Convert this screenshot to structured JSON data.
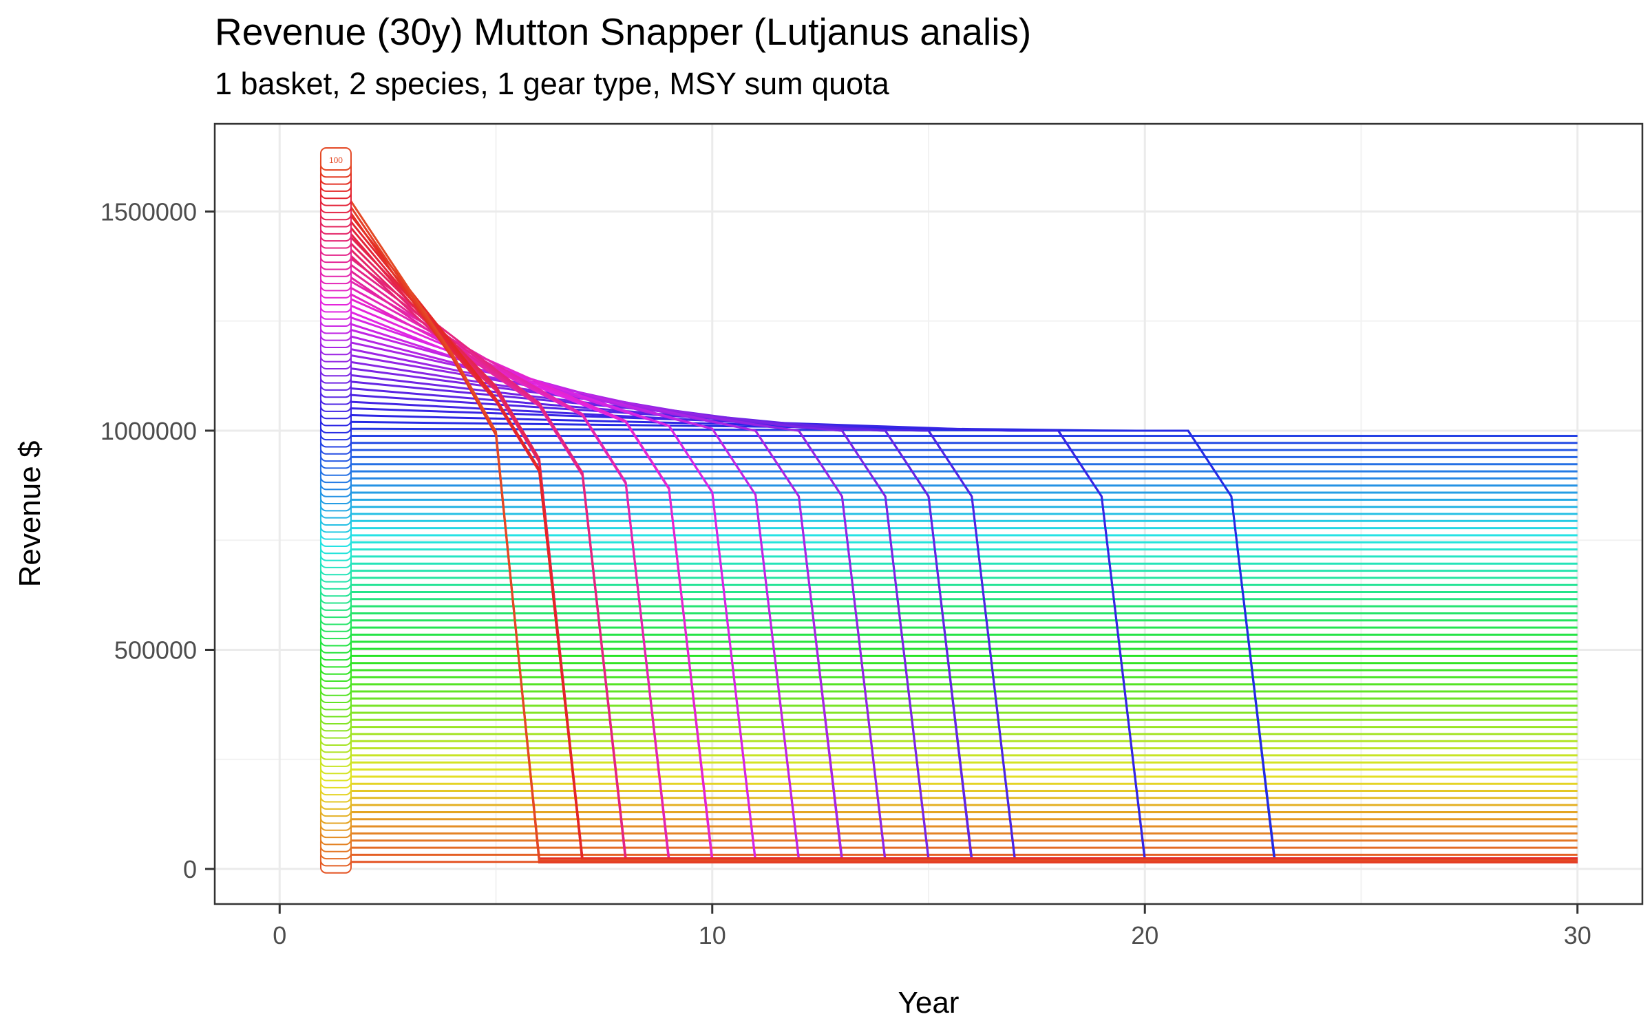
{
  "chart_data": {
    "type": "line",
    "title": "Revenue (30y) Mutton Snapper (Lutjanus analis)",
    "subtitle": "1 basket, 2 species, 1 gear type, MSY sum quota",
    "xlabel": "Year",
    "ylabel": "Revenue $",
    "xlim": [
      -1.5,
      31.5
    ],
    "ylim": [
      -80000,
      1700000
    ],
    "xticks": [
      0,
      10,
      20,
      30
    ],
    "yticks": [
      0,
      500000,
      1000000,
      1500000
    ],
    "grid": true,
    "legend": "none",
    "series_count": 100,
    "series_top_value": 1620000,
    "series_step": 16200,
    "steady_level": 1000000,
    "x_start": 1,
    "x_end": 30,
    "label_x": 1.3,
    "start_labels": [
      "100"
    ],
    "collapse_schedule": [
      {
        "from_series": 62,
        "to_series": 63,
        "year": 23
      },
      {
        "from_series": 64,
        "to_series": 65,
        "year": 20
      },
      {
        "from_series": 66,
        "to_series": 67,
        "year": 17
      },
      {
        "from_series": 68,
        "to_series": 69,
        "year": 16
      },
      {
        "from_series": 70,
        "to_series": 71,
        "year": 15
      },
      {
        "from_series": 72,
        "to_series": 73,
        "year": 14
      },
      {
        "from_series": 74,
        "to_series": 75,
        "year": 13
      },
      {
        "from_series": 76,
        "to_series": 77,
        "year": 12
      },
      {
        "from_series": 78,
        "to_series": 79,
        "year": 11
      },
      {
        "from_series": 80,
        "to_series": 82,
        "year": 10
      },
      {
        "from_series": 83,
        "to_series": 85,
        "year": 9
      },
      {
        "from_series": 86,
        "to_series": 89,
        "year": 8
      },
      {
        "from_series": 90,
        "to_series": 93,
        "year": 7
      },
      {
        "from_series": 94,
        "to_series": 97,
        "year": 6.5
      },
      {
        "from_series": 98,
        "to_series": 100,
        "year": 6
      }
    ],
    "residual_value": 15000
  }
}
